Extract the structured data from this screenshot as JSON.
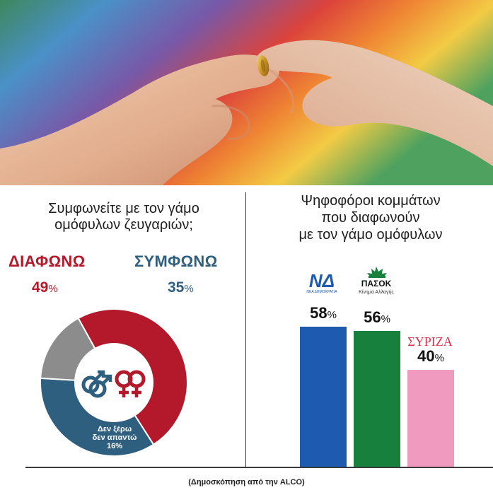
{
  "left_panel": {
    "question": "Συμφωνείτε με τον γάμο ομόφυλων ζευγαριών;",
    "disagree_label": "ΔΙΑΦΩΝΩ",
    "agree_label": "ΣΥΜΦΩΝΩ",
    "disagree_value": "49",
    "agree_value": "35",
    "percent_sign": "%",
    "unsure_line1": "Δεν ξέρω",
    "unsure_line2": "δεν απαντώ",
    "unsure_value": "16%"
  },
  "right_panel": {
    "title_line1": "Ψηφοφόροι κομμάτων",
    "title_line2": "που διαφωνούν",
    "title_line3": "με τον γάμο ομόφυλων"
  },
  "logos": {
    "nd": "ΝΔ",
    "nd_sub": "ΝΕΑ ΔΗΜΟΚΡΑΤΙΑ",
    "pasok": "ΠΑΣΟΚ",
    "pasok_sub": "Κίνημα Αλλαγής",
    "syriza": "ΣΥΡΙΖΑ"
  },
  "footer": "(Δημοσκόπηση από την ALCO)",
  "colors": {
    "disagree": "#b3192b",
    "agree": "#2f5f7f",
    "unsure": "#8c8c8c",
    "nd": "#1e5bb0",
    "pasok": "#17803d",
    "syriza": "#f09ac0"
  },
  "chart_data": [
    {
      "type": "pie",
      "title": "Συμφωνείτε με τον γάμο ομόφυλων ζευγαριών;",
      "categories": [
        "ΔΙΑΦΩΝΩ",
        "ΣΥΜΦΩΝΩ",
        "Δεν ξέρω δεν απαντώ"
      ],
      "values": [
        49,
        35,
        16
      ],
      "unit": "%",
      "donut": true
    },
    {
      "type": "bar",
      "title": "Ψηφοφόροι κομμάτων που διαφωνούν με τον γάμο ομόφυλων",
      "categories": [
        "ΝΔ",
        "ΠΑΣΟΚ",
        "ΣΥΡΙΖΑ"
      ],
      "values": [
        58,
        56,
        40
      ],
      "unit": "%",
      "ylim": [
        0,
        100
      ]
    }
  ]
}
